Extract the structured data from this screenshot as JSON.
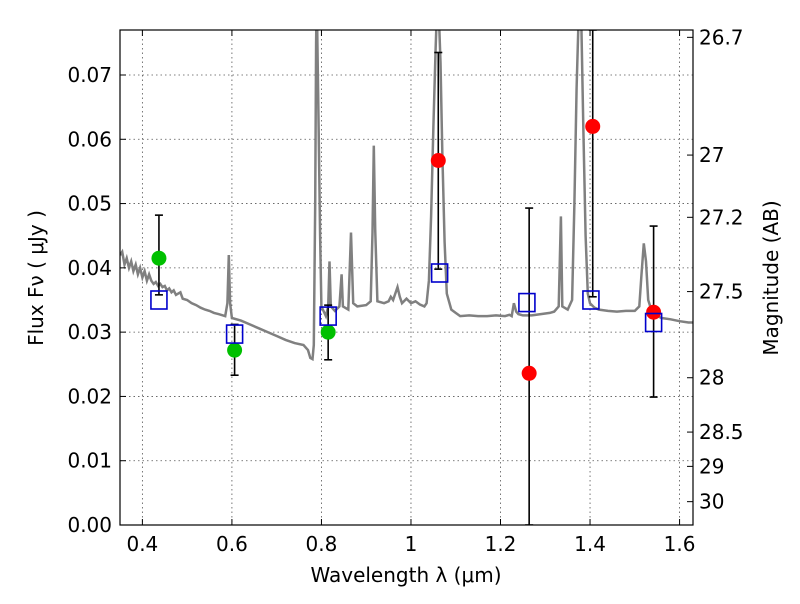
{
  "chart_data": {
    "type": "scatter",
    "xlabel": "Wavelength  λ (μm)",
    "ylabel": "Flux  Fν  ( μJy )",
    "ylabel_right": "Magnitude (AB)",
    "xlim": [
      0.35,
      1.63
    ],
    "ylim": [
      0.0,
      0.077
    ],
    "grid": true,
    "x_ticks": [
      {
        "value": 0.4,
        "label": "0.4"
      },
      {
        "value": 0.6,
        "label": "0.6"
      },
      {
        "value": 0.8,
        "label": "0.8"
      },
      {
        "value": 1.0,
        "label": "1"
      },
      {
        "value": 1.2,
        "label": "1.2"
      },
      {
        "value": 1.4,
        "label": "1.4"
      },
      {
        "value": 1.6,
        "label": "1.6"
      }
    ],
    "y_ticks": [
      {
        "value": 0.0,
        "label": "0.00"
      },
      {
        "value": 0.01,
        "label": "0.01"
      },
      {
        "value": 0.02,
        "label": "0.02"
      },
      {
        "value": 0.03,
        "label": "0.03"
      },
      {
        "value": 0.04,
        "label": "0.04"
      },
      {
        "value": 0.05,
        "label": "0.05"
      },
      {
        "value": 0.06,
        "label": "0.06"
      },
      {
        "value": 0.07,
        "label": "0.07"
      }
    ],
    "y_right_ticks": [
      {
        "value": 26.7,
        "label": "26.7"
      },
      {
        "value": 27,
        "label": "27"
      },
      {
        "value": 27.2,
        "label": "27.2"
      },
      {
        "value": 27.5,
        "label": "27.5"
      },
      {
        "value": 28,
        "label": "28"
      },
      {
        "value": 28.5,
        "label": "28.5"
      },
      {
        "value": 29,
        "label": "29"
      },
      {
        "value": 30,
        "label": "30"
      }
    ],
    "colors": {
      "sed": "#808080",
      "green": "#00c000",
      "red": "#ff0000",
      "square": "#0000cc",
      "errorbar": "#000000"
    },
    "sed_template": [
      [
        0.35,
        0.042
      ],
      [
        0.355,
        0.0425
      ],
      [
        0.36,
        0.0405
      ],
      [
        0.365,
        0.0415
      ],
      [
        0.37,
        0.04
      ],
      [
        0.375,
        0.041
      ],
      [
        0.38,
        0.0395
      ],
      [
        0.385,
        0.0405
      ],
      [
        0.39,
        0.039
      ],
      [
        0.395,
        0.04
      ],
      [
        0.4,
        0.0385
      ],
      [
        0.405,
        0.0395
      ],
      [
        0.41,
        0.038
      ],
      [
        0.415,
        0.039
      ],
      [
        0.42,
        0.038
      ],
      [
        0.425,
        0.0375
      ],
      [
        0.43,
        0.0378
      ],
      [
        0.435,
        0.0372
      ],
      [
        0.44,
        0.0375
      ],
      [
        0.445,
        0.037
      ],
      [
        0.45,
        0.0372
      ],
      [
        0.455,
        0.0365
      ],
      [
        0.46,
        0.0368
      ],
      [
        0.465,
        0.0362
      ],
      [
        0.47,
        0.0365
      ],
      [
        0.475,
        0.0358
      ],
      [
        0.48,
        0.036
      ],
      [
        0.485,
        0.0362
      ],
      [
        0.49,
        0.0352
      ],
      [
        0.5,
        0.035
      ],
      [
        0.51,
        0.0345
      ],
      [
        0.52,
        0.0342
      ],
      [
        0.53,
        0.0338
      ],
      [
        0.54,
        0.0335
      ],
      [
        0.55,
        0.0333
      ],
      [
        0.56,
        0.033
      ],
      [
        0.57,
        0.0328
      ],
      [
        0.58,
        0.0326
      ],
      [
        0.585,
        0.0325
      ],
      [
        0.59,
        0.0345
      ],
      [
        0.593,
        0.042
      ],
      [
        0.596,
        0.0345
      ],
      [
        0.6,
        0.0322
      ],
      [
        0.62,
        0.0318
      ],
      [
        0.64,
        0.0312
      ],
      [
        0.66,
        0.0306
      ],
      [
        0.68,
        0.03
      ],
      [
        0.7,
        0.0294
      ],
      [
        0.72,
        0.0288
      ],
      [
        0.74,
        0.0283
      ],
      [
        0.76,
        0.028
      ],
      [
        0.77,
        0.0272
      ],
      [
        0.775,
        0.026
      ],
      [
        0.78,
        0.0258
      ],
      [
        0.783,
        0.028
      ],
      [
        0.786,
        0.05
      ],
      [
        0.788,
        0.075
      ],
      [
        0.789,
        0.08
      ],
      [
        0.79,
        0.08
      ],
      [
        0.791,
        0.075
      ],
      [
        0.794,
        0.06
      ],
      [
        0.797,
        0.045
      ],
      [
        0.8,
        0.034
      ],
      [
        0.81,
        0.0325
      ],
      [
        0.815,
        0.034
      ],
      [
        0.818,
        0.041
      ],
      [
        0.821,
        0.034
      ],
      [
        0.83,
        0.0333
      ],
      [
        0.84,
        0.034
      ],
      [
        0.845,
        0.039
      ],
      [
        0.848,
        0.034
      ],
      [
        0.86,
        0.0335
      ],
      [
        0.866,
        0.0455
      ],
      [
        0.871,
        0.0345
      ],
      [
        0.88,
        0.034
      ],
      [
        0.9,
        0.0342
      ],
      [
        0.91,
        0.0348
      ],
      [
        0.914,
        0.0455
      ],
      [
        0.917,
        0.059
      ],
      [
        0.92,
        0.046
      ],
      [
        0.925,
        0.0348
      ],
      [
        0.94,
        0.0345
      ],
      [
        0.95,
        0.0348
      ],
      [
        0.955,
        0.0355
      ],
      [
        0.96,
        0.035
      ],
      [
        0.97,
        0.037
      ],
      [
        0.975,
        0.0355
      ],
      [
        0.98,
        0.0345
      ],
      [
        0.99,
        0.0352
      ],
      [
        1.0,
        0.0345
      ],
      [
        1.01,
        0.0348
      ],
      [
        1.02,
        0.0343
      ],
      [
        1.03,
        0.034
      ],
      [
        1.035,
        0.0345
      ],
      [
        1.04,
        0.038
      ],
      [
        1.045,
        0.048
      ],
      [
        1.05,
        0.062
      ],
      [
        1.055,
        0.074
      ],
      [
        1.058,
        0.08
      ],
      [
        1.062,
        0.08
      ],
      [
        1.066,
        0.072
      ],
      [
        1.07,
        0.058
      ],
      [
        1.075,
        0.044
      ],
      [
        1.08,
        0.036
      ],
      [
        1.09,
        0.0335
      ],
      [
        1.1,
        0.033
      ],
      [
        1.11,
        0.0325
      ],
      [
        1.13,
        0.0326
      ],
      [
        1.15,
        0.0325
      ],
      [
        1.17,
        0.0325
      ],
      [
        1.19,
        0.0326
      ],
      [
        1.21,
        0.0325
      ],
      [
        1.22,
        0.0327
      ],
      [
        1.225,
        0.0325
      ],
      [
        1.23,
        0.0345
      ],
      [
        1.235,
        0.0332
      ],
      [
        1.24,
        0.0328
      ],
      [
        1.25,
        0.0326
      ],
      [
        1.27,
        0.0326
      ],
      [
        1.29,
        0.0328
      ],
      [
        1.31,
        0.033
      ],
      [
        1.32,
        0.0332
      ],
      [
        1.33,
        0.034
      ],
      [
        1.335,
        0.048
      ],
      [
        1.338,
        0.034
      ],
      [
        1.35,
        0.0335
      ],
      [
        1.36,
        0.035
      ],
      [
        1.365,
        0.05
      ],
      [
        1.37,
        0.068
      ],
      [
        1.375,
        0.08
      ],
      [
        1.38,
        0.08
      ],
      [
        1.385,
        0.062
      ],
      [
        1.39,
        0.045
      ],
      [
        1.395,
        0.036
      ],
      [
        1.4,
        0.0345
      ],
      [
        1.41,
        0.0338
      ],
      [
        1.42,
        0.0335
      ],
      [
        1.44,
        0.0333
      ],
      [
        1.46,
        0.0332
      ],
      [
        1.48,
        0.0333
      ],
      [
        1.5,
        0.0333
      ],
      [
        1.51,
        0.034
      ],
      [
        1.515,
        0.039
      ],
      [
        1.52,
        0.0438
      ],
      [
        1.525,
        0.041
      ],
      [
        1.53,
        0.035
      ],
      [
        1.54,
        0.0328
      ],
      [
        1.56,
        0.0322
      ],
      [
        1.58,
        0.032
      ],
      [
        1.6,
        0.0317
      ],
      [
        1.62,
        0.0315
      ],
      [
        1.63,
        0.0315
      ]
    ],
    "series": [
      {
        "marker": "circle",
        "color": "green",
        "points": [
          {
            "x": 0.437,
            "y": 0.0415,
            "yerr_lo": 0.0358,
            "yerr_hi": 0.0482
          },
          {
            "x": 0.606,
            "y": 0.0272,
            "yerr_lo": 0.0233,
            "yerr_hi": 0.0312
          },
          {
            "x": 0.815,
            "y": 0.03,
            "yerr_lo": 0.0257,
            "yerr_hi": 0.0342
          }
        ]
      },
      {
        "marker": "circle",
        "color": "red",
        "points": [
          {
            "x": 1.061,
            "y": 0.0567,
            "yerr_lo": 0.0398,
            "yerr_hi": 0.0735
          },
          {
            "x": 1.264,
            "y": 0.0236,
            "yerr_lo": 0.0,
            "yerr_hi": 0.0493
          },
          {
            "x": 1.406,
            "y": 0.062,
            "yerr_lo": 0.0355,
            "yerr_hi": 0.077
          },
          {
            "x": 1.542,
            "y": 0.0331,
            "yerr_lo": 0.0199,
            "yerr_hi": 0.0465
          }
        ]
      },
      {
        "marker": "square",
        "color": "square",
        "points": [
          {
            "x": 0.437,
            "y": 0.035
          },
          {
            "x": 0.606,
            "y": 0.0297
          },
          {
            "x": 0.815,
            "y": 0.0325
          },
          {
            "x": 1.064,
            "y": 0.0392
          },
          {
            "x": 1.259,
            "y": 0.0346
          },
          {
            "x": 1.402,
            "y": 0.035
          },
          {
            "x": 1.542,
            "y": 0.0315
          }
        ]
      }
    ]
  }
}
